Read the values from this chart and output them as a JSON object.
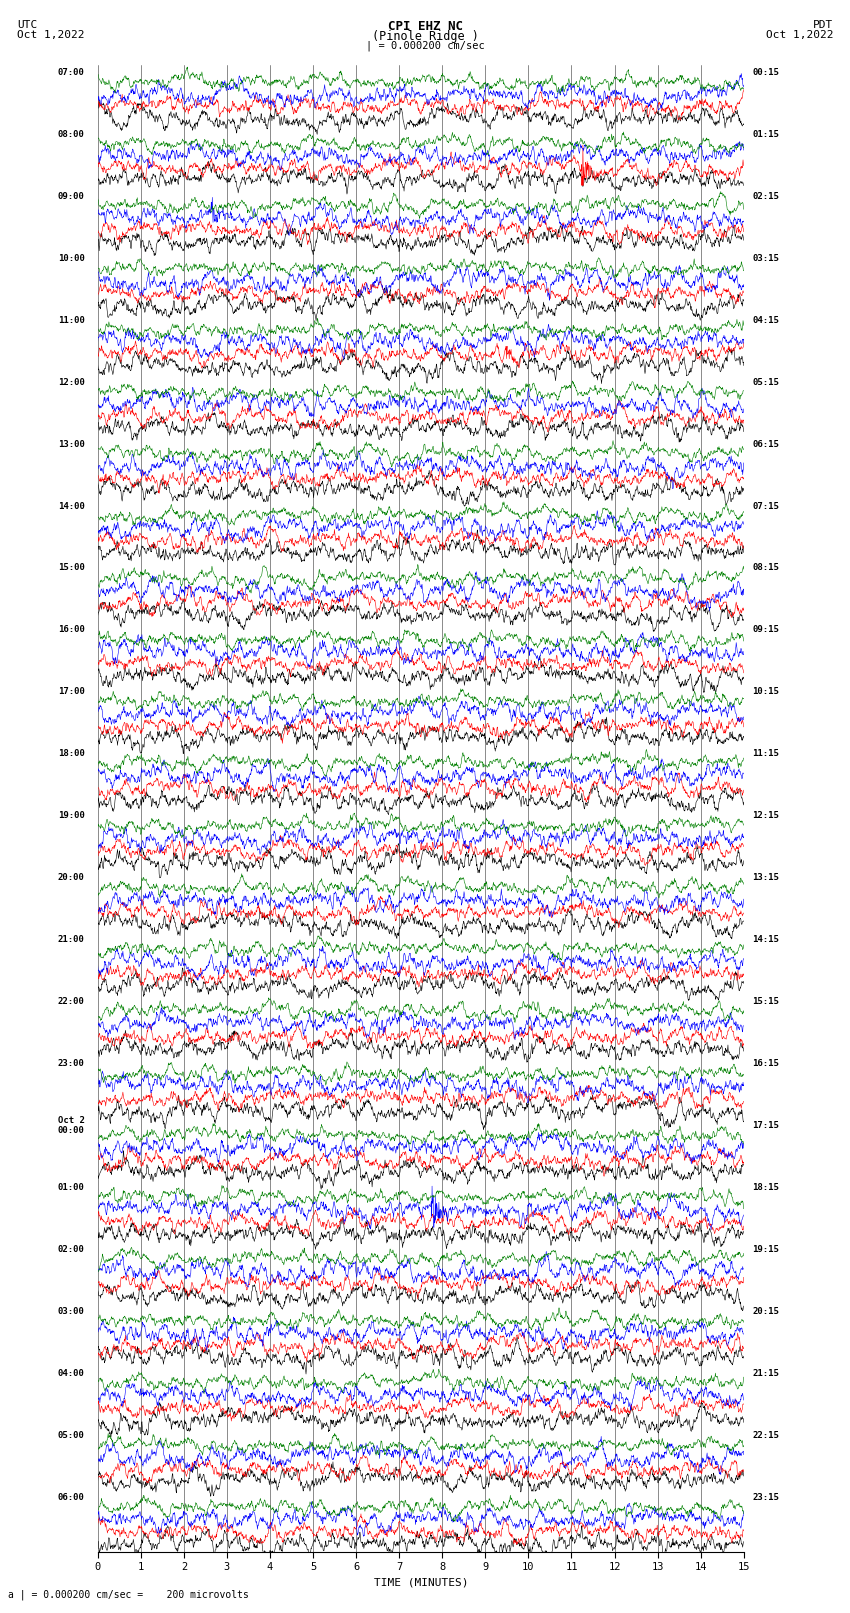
{
  "title_line1": "CPI EHZ NC",
  "title_line2": "(Pinole Ridge )",
  "scale_label": "| = 0.000200 cm/sec",
  "scale_label2": "a | = 0.000200 cm/sec =    200 microvolts",
  "left_header_line1": "UTC",
  "left_header_line2": "Oct 1,2022",
  "right_header_line1": "PDT",
  "right_header_line2": "Oct 1,2022",
  "xlabel": "TIME (MINUTES)",
  "xlim": [
    0,
    15
  ],
  "xticks": [
    0,
    1,
    2,
    3,
    4,
    5,
    6,
    7,
    8,
    9,
    10,
    11,
    12,
    13,
    14,
    15
  ],
  "bg_color": "#ffffff",
  "trace_colors": [
    "black",
    "red",
    "blue",
    "green"
  ],
  "utc_labels": [
    "07:00",
    "08:00",
    "09:00",
    "10:00",
    "11:00",
    "12:00",
    "13:00",
    "14:00",
    "15:00",
    "16:00",
    "17:00",
    "18:00",
    "19:00",
    "20:00",
    "21:00",
    "22:00",
    "23:00",
    "Oct 2\n00:00",
    "01:00",
    "02:00",
    "03:00",
    "04:00",
    "05:00",
    "06:00"
  ],
  "pdt_labels": [
    "00:15",
    "01:15",
    "02:15",
    "03:15",
    "04:15",
    "05:15",
    "06:15",
    "07:15",
    "08:15",
    "09:15",
    "10:15",
    "11:15",
    "12:15",
    "13:15",
    "14:15",
    "15:15",
    "16:15",
    "17:15",
    "18:15",
    "19:15",
    "20:15",
    "21:15",
    "22:15",
    "23:15"
  ],
  "n_hour_groups": 24,
  "traces_per_group": 4,
  "minutes": 15,
  "n_samples": 1800
}
